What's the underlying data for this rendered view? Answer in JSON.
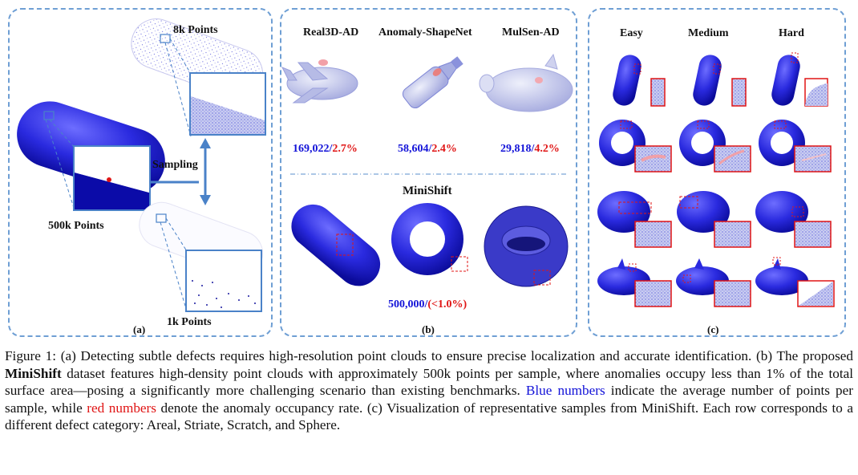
{
  "panel_a": {
    "letter": "(a)",
    "label_8k": "8k Points",
    "label_500k": "500k Points",
    "label_1k": "1k Points",
    "sampling": "Sampling"
  },
  "panel_b": {
    "letter": "(b)",
    "datasets": [
      {
        "name": "Real3D-AD",
        "points": "169,022",
        "sep": "/",
        "rate": "2.7%"
      },
      {
        "name": "Anomaly-ShapeNet",
        "points": "58,604",
        "sep": "/",
        "rate": "2.4%"
      },
      {
        "name": "MulSen-AD",
        "points": "29,818",
        "sep": "/",
        "rate": "4.2%"
      }
    ],
    "minishift_title": "MiniShift",
    "minishift_points": "500,000",
    "minishift_sep": "/",
    "minishift_rate": "(<1.0%)"
  },
  "panel_c": {
    "letter": "(c)",
    "columns": [
      "Easy",
      "Medium",
      "Hard"
    ]
  },
  "caption": {
    "p1": "Figure 1: (a) Detecting subtle defects requires high-resolution point clouds to ensure precise localization and accurate identification. (b) The proposed ",
    "bold": "MiniShift",
    "p2": " dataset features high-density point clouds with approximately 500k points per sample, where anomalies occupy less than 1% of the total surface area—posing a significantly more challenging scenario than existing benchmarks. ",
    "blue": "Blue numbers",
    "p3": " indicate the average number of points per sample, while ",
    "red": "red numbers",
    "p4": " denote the anomaly occupancy rate. (c) Visualization of representative samples from MiniShift. Each row corresponds to a different defect category: Areal, Striate, Scratch, and Sphere."
  },
  "colors": {
    "blue": "#1212d8",
    "red": "#e01515",
    "dashed_border": "#6f9fd4",
    "solid_blue": "#2b2bd6"
  }
}
